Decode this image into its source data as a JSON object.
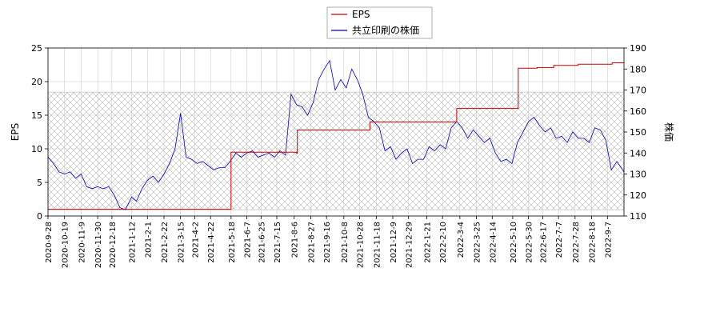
{
  "chart_data": {
    "type": "line",
    "title": "",
    "legend": {
      "placement": "top-center",
      "entries": [
        {
          "label": "EPS",
          "color": "#cc0000"
        },
        {
          "label": "共立印刷の株価",
          "color": "#0000cc"
        }
      ]
    },
    "left_axis": {
      "label": "EPS",
      "ylim": [
        0,
        25
      ],
      "ticks": [
        "0",
        "5",
        "10",
        "15",
        "20",
        "25"
      ]
    },
    "right_axis": {
      "label": "株価",
      "ylim": [
        110,
        190
      ],
      "ticks": [
        "110",
        "120",
        "130",
        "140",
        "150",
        "160",
        "170",
        "180",
        "190"
      ]
    },
    "x_axis": {
      "xlim": [
        "2020-09-28",
        "2022-09-28"
      ],
      "ticks": [
        "2020-9-28",
        "2020-10-19",
        "2020-11-9",
        "2020-11-30",
        "2020-12-18",
        "2021-1-12",
        "2021-2-1",
        "2021-2-22",
        "2021-3-15",
        "2021-4-2",
        "2021-4-22",
        "2021-5-18",
        "2021-6-7",
        "2021-6-25",
        "2021-7-15",
        "2021-8-6",
        "2021-8-27",
        "2021-9-16",
        "2021-10-8",
        "2021-10-28",
        "2021-11-18",
        "2021-12-9",
        "2021-12-29",
        "2022-1-21",
        "2022-2-10",
        "2022-3-4",
        "2022-3-25",
        "2022-4-14",
        "2022-5-10",
        "2022-5-30",
        "2022-6-17",
        "2022-7-7",
        "2022-7-28",
        "2022-8-18",
        "2022-9-7"
      ]
    },
    "grid": true,
    "band": {
      "from": 113,
      "to": 169,
      "pattern": "cross-hatch",
      "color": "#b0b0b0",
      "axis": "right"
    },
    "series": [
      {
        "name": "EPS",
        "axis": "left",
        "color": "#cc0000",
        "step": true,
        "x": [
          "2020-09-28",
          "2021-05-17",
          "2021-05-18",
          "2021-07-16",
          "2021-08-09",
          "2021-08-10",
          "2021-11-09",
          "2021-11-10",
          "2022-02-25",
          "2022-02-28",
          "2022-05-16",
          "2022-05-17",
          "2022-06-10",
          "2022-07-01",
          "2022-08-01",
          "2022-09-13",
          "2022-09-28"
        ],
        "values": [
          1.0,
          1.0,
          9.5,
          9.5,
          9.3,
          12.8,
          12.8,
          14.0,
          14.0,
          16.0,
          16.0,
          22.0,
          22.1,
          22.4,
          22.6,
          22.8,
          22.8
        ]
      },
      {
        "name": "共立印刷の株価",
        "axis": "right",
        "color": "#0000cc",
        "step": false,
        "x": [
          "2020-09-28",
          "2020-10-05",
          "2020-10-12",
          "2020-10-19",
          "2020-10-26",
          "2020-11-02",
          "2020-11-09",
          "2020-11-16",
          "2020-11-23",
          "2020-11-30",
          "2020-12-07",
          "2020-12-14",
          "2020-12-21",
          "2020-12-28",
          "2021-01-04",
          "2021-01-12",
          "2021-01-18",
          "2021-01-25",
          "2021-02-01",
          "2021-02-08",
          "2021-02-15",
          "2021-02-22",
          "2021-03-01",
          "2021-03-08",
          "2021-03-15",
          "2021-03-22",
          "2021-03-29",
          "2021-04-05",
          "2021-04-12",
          "2021-04-19",
          "2021-04-26",
          "2021-05-03",
          "2021-05-10",
          "2021-05-17",
          "2021-05-24",
          "2021-05-31",
          "2021-06-07",
          "2021-06-14",
          "2021-06-21",
          "2021-06-28",
          "2021-07-05",
          "2021-07-12",
          "2021-07-19",
          "2021-07-26",
          "2021-08-02",
          "2021-08-09",
          "2021-08-16",
          "2021-08-23",
          "2021-08-30",
          "2021-09-06",
          "2021-09-13",
          "2021-09-20",
          "2021-09-27",
          "2021-10-04",
          "2021-10-11",
          "2021-10-18",
          "2021-10-25",
          "2021-11-01",
          "2021-11-08",
          "2021-11-15",
          "2021-11-22",
          "2021-11-29",
          "2021-12-06",
          "2021-12-13",
          "2021-12-20",
          "2021-12-27",
          "2022-01-03",
          "2022-01-10",
          "2022-01-17",
          "2022-01-24",
          "2022-01-31",
          "2022-02-07",
          "2022-02-14",
          "2022-02-21",
          "2022-02-28",
          "2022-03-07",
          "2022-03-14",
          "2022-03-21",
          "2022-03-28",
          "2022-04-04",
          "2022-04-11",
          "2022-04-18",
          "2022-04-25",
          "2022-05-02",
          "2022-05-09",
          "2022-05-16",
          "2022-05-23",
          "2022-05-30",
          "2022-06-06",
          "2022-06-13",
          "2022-06-20",
          "2022-06-27",
          "2022-07-04",
          "2022-07-11",
          "2022-07-18",
          "2022-07-25",
          "2022-08-01",
          "2022-08-08",
          "2022-08-15",
          "2022-08-22",
          "2022-08-29",
          "2022-09-05",
          "2022-09-12",
          "2022-09-19",
          "2022-09-28"
        ],
        "values": [
          138,
          135,
          131,
          130,
          131,
          128,
          130,
          124,
          123,
          124,
          123,
          124,
          120,
          114,
          113,
          119,
          117,
          123,
          127,
          129,
          126,
          130,
          135,
          142,
          159,
          138,
          137,
          135,
          136,
          134,
          132,
          133,
          133,
          136,
          140,
          138,
          140,
          141,
          138,
          139,
          140,
          138,
          141,
          139,
          168,
          163,
          162,
          158,
          164,
          175,
          180,
          184,
          170,
          175,
          171,
          180,
          175,
          168,
          157,
          155,
          152,
          141,
          143,
          137,
          140,
          142,
          135,
          137,
          137,
          143,
          141,
          144,
          142,
          152,
          155,
          152,
          147,
          151,
          148,
          145,
          147,
          140,
          136,
          137,
          135,
          145,
          150,
          155,
          157,
          153,
          150,
          152,
          147,
          148,
          145,
          150,
          147,
          147,
          145,
          152,
          151,
          146,
          132,
          136,
          131
        ]
      }
    ]
  }
}
